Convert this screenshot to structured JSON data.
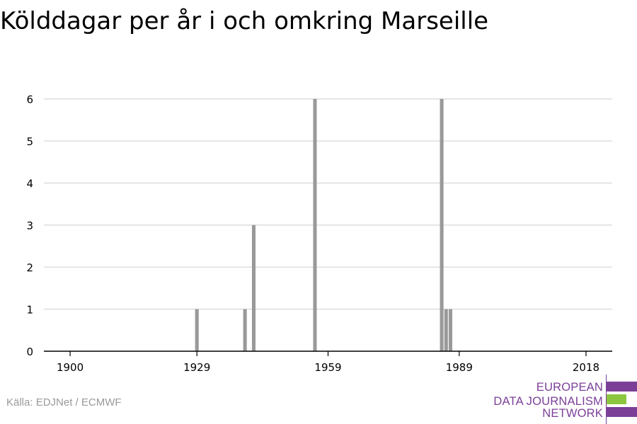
{
  "title": "Kölddagar per år i och omkring Marseille",
  "source": "Källa: EDJNet / ECMWF",
  "logo": {
    "lines": [
      "EUROPEAN",
      "DATA JOURNALISM",
      "NETWORK"
    ],
    "colors": {
      "purple": "#7b3f98",
      "green": "#8cc63f"
    }
  },
  "colors": {
    "bar": "#999999",
    "grid": "#dddddd",
    "axis": "#000000"
  },
  "chart_data": {
    "type": "bar",
    "title": "Kölddagar per år i och omkring Marseille",
    "xlabel": "",
    "ylabel": "",
    "x_ticks": [
      1900,
      1929,
      1959,
      1989,
      2018
    ],
    "y_ticks": [
      0,
      1,
      2,
      3,
      4,
      5,
      6
    ],
    "xlim": [
      1894,
      2024
    ],
    "ylim": [
      0,
      6
    ],
    "grid": true,
    "x": [
      1929,
      1940,
      1942,
      1956,
      1985,
      1986,
      1987
    ],
    "values": [
      1,
      1,
      3,
      6,
      6,
      1,
      1
    ]
  }
}
